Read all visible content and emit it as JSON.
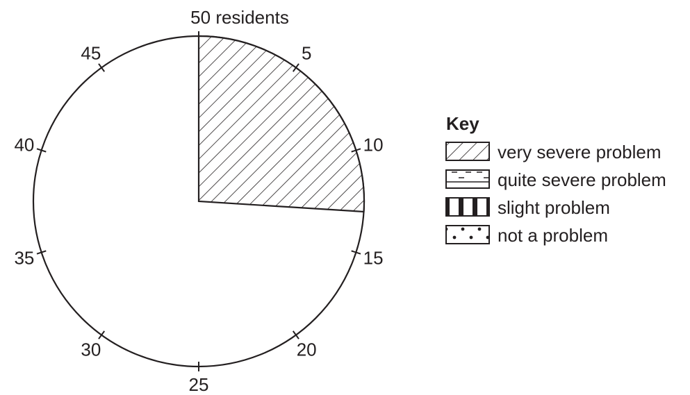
{
  "chart_data": {
    "type": "pie",
    "total": 50,
    "scale_label": "50 residents",
    "ticks": [
      {
        "value": 5,
        "label": "5"
      },
      {
        "value": 10,
        "label": "10"
      },
      {
        "value": 15,
        "label": "15"
      },
      {
        "value": 20,
        "label": "20"
      },
      {
        "value": 25,
        "label": "25"
      },
      {
        "value": 30,
        "label": "30"
      },
      {
        "value": 35,
        "label": "35"
      },
      {
        "value": 40,
        "label": "40"
      },
      {
        "value": 45,
        "label": "45"
      }
    ],
    "slices": [
      {
        "label": "very severe problem",
        "value": 13,
        "pattern": "diagonal-hatch",
        "drawn": true
      },
      {
        "label": "quite severe problem",
        "value": null,
        "pattern": "dashed-lines",
        "drawn": false
      },
      {
        "label": "slight problem",
        "value": null,
        "pattern": "vertical-bars",
        "drawn": false
      },
      {
        "label": "not a problem",
        "value": null,
        "pattern": "dots",
        "drawn": false
      }
    ],
    "legend": {
      "title": "Key",
      "placement": "right"
    }
  }
}
